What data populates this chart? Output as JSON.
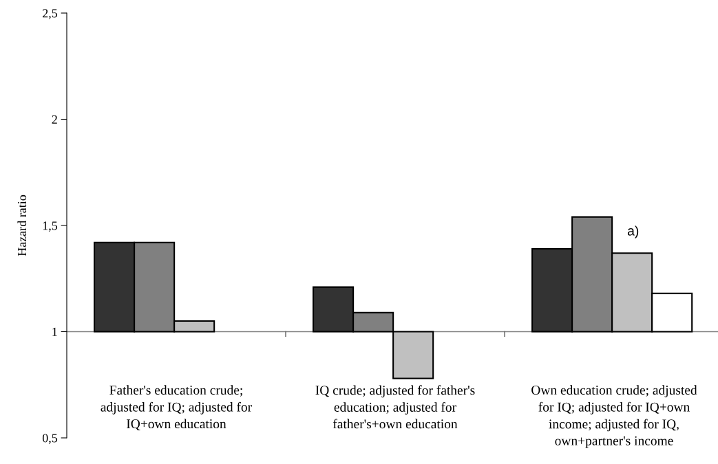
{
  "chart_data": {
    "type": "bar",
    "ylabel": "Hazard ratio",
    "categories": [
      "Father's education crude;\nadjusted for IQ; adjusted for\nIQ+own education",
      "IQ crude; adjusted for father's\neducation; adjusted for\nfather's+own education",
      "Own education crude; adjusted\nfor IQ; adjusted for IQ+own\nincome; adjusted for IQ,\nown+partner's income"
    ],
    "series": [
      {
        "color": "#333333",
        "base": [
          1,
          1,
          1
        ],
        "values": [
          0.42,
          0.21,
          0.39
        ]
      },
      {
        "color": "#808080",
        "base": [
          1,
          1,
          1
        ],
        "values": [
          0.42,
          0.09,
          0.54
        ]
      },
      {
        "color": "#c0c0c0",
        "base": [
          1,
          1,
          1
        ],
        "values": [
          0.05,
          -0.22,
          0.37
        ]
      },
      {
        "color": "#ffffff",
        "base": [
          null,
          null,
          1
        ],
        "values": [
          null,
          null,
          0.18
        ]
      }
    ],
    "ylim": [
      0.5,
      2.5
    ],
    "yticks": [
      {
        "value": 0.5,
        "label": "0,5"
      },
      1,
      {
        "value": 1.5,
        "label": "1,5"
      },
      2,
      {
        "value": 2.5,
        "label": "2,5"
      }
    ],
    "annotations": [
      {
        "text": "a)",
        "x": "Own education crude; adjusted\nfor IQ; adjusted for IQ+own\nincome; adjusted for IQ,\nown+partner's income",
        "y": 1.44
      }
    ],
    "ref_lines": [
      {
        "axis": "y",
        "value": 1,
        "color": "#808080"
      }
    ],
    "grid": false,
    "legend": false
  }
}
